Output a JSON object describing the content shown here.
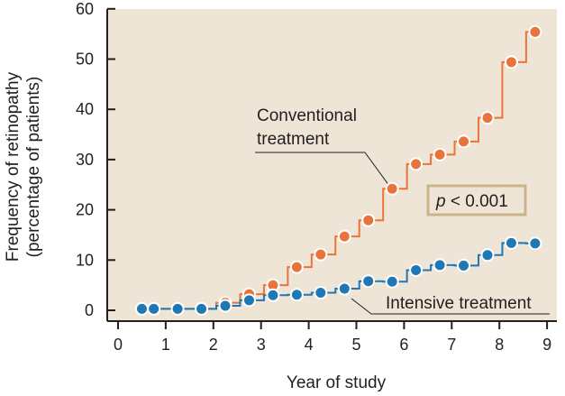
{
  "chart_data": {
    "type": "line",
    "xlabel": "Year of study",
    "ylabel_line1": "Frequency of retinopathy",
    "ylabel_line2": "(percentage of patients)",
    "xlim": [
      0,
      9
    ],
    "ylim": [
      0,
      60
    ],
    "x_ticks": [
      "0",
      "1",
      "2",
      "3",
      "4",
      "5",
      "6",
      "7",
      "8",
      "9"
    ],
    "y_ticks": [
      "0",
      "10",
      "20",
      "30",
      "40",
      "50",
      "60"
    ],
    "grid": false,
    "background_color": "#efe5d6",
    "series": [
      {
        "name": "Conventional treatment",
        "label_line1": "Conventional",
        "label_line2": "treatment",
        "color": "#e8743b",
        "x": [
          0.5,
          0.75,
          1.25,
          1.75,
          2.25,
          2.75,
          3.25,
          3.75,
          4.25,
          4.75,
          5.25,
          5.75,
          6.25,
          6.75,
          7.25,
          7.75,
          8.25,
          8.75
        ],
        "y": [
          0.3,
          0.3,
          0.3,
          0.3,
          1.5,
          3.2,
          5.0,
          8.6,
          11.1,
          14.7,
          17.9,
          24.2,
          29.1,
          31.0,
          33.6,
          38.3,
          49.4,
          55.4
        ]
      },
      {
        "name": "Intensive treatment",
        "label": "Intensive treatment",
        "color": "#1f78b4",
        "x": [
          0.5,
          0.75,
          1.25,
          1.75,
          2.25,
          2.75,
          3.25,
          3.75,
          4.25,
          4.75,
          5.25,
          5.75,
          6.25,
          6.75,
          7.25,
          7.75,
          8.25,
          8.75
        ],
        "y": [
          0.3,
          0.3,
          0.3,
          0.3,
          0.9,
          2.0,
          3.0,
          3.1,
          3.5,
          4.3,
          5.8,
          5.7,
          8.0,
          9.0,
          8.9,
          11.0,
          13.4,
          13.3
        ]
      }
    ],
    "annotations": [
      {
        "text": "p < 0.001",
        "italic_part": "p",
        "rest": " < 0.001",
        "box": true,
        "border_color": "#c9b48a"
      }
    ]
  }
}
